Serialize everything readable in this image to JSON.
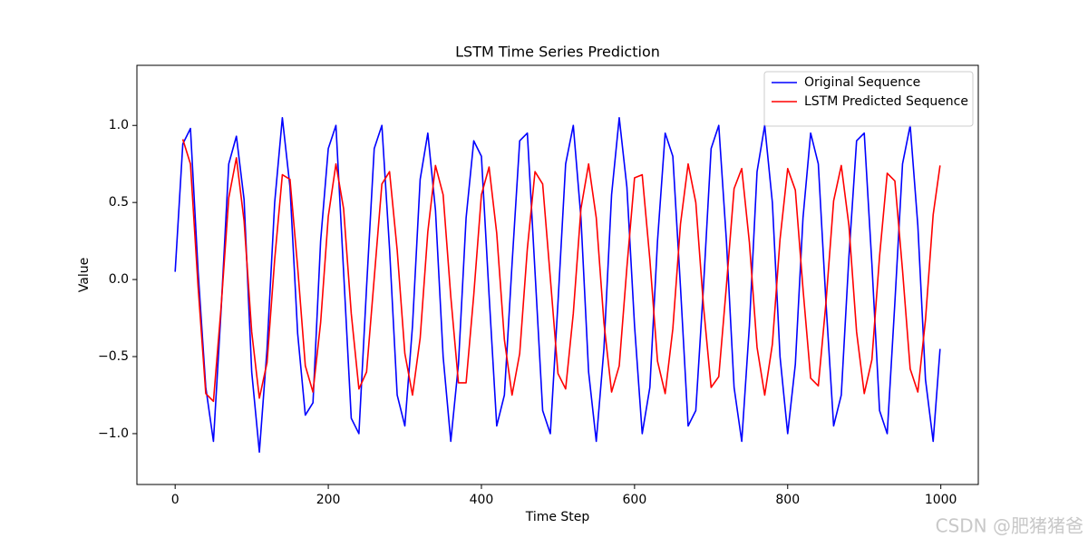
{
  "chart_data": {
    "type": "line",
    "title": "LSTM Time Series Prediction",
    "x_label": "Time Step",
    "y_label": "Value",
    "x": [
      0,
      10,
      20,
      30,
      40,
      50,
      60,
      70,
      80,
      90,
      100,
      110,
      120,
      130,
      140,
      150,
      160,
      170,
      180,
      190,
      200,
      210,
      220,
      230,
      240,
      250,
      260,
      270,
      280,
      290,
      300,
      310,
      320,
      330,
      340,
      350,
      360,
      370,
      380,
      390,
      400,
      410,
      420,
      430,
      440,
      450,
      460,
      470,
      480,
      490,
      500,
      510,
      520,
      530,
      540,
      550,
      560,
      570,
      580,
      590,
      600,
      610,
      620,
      630,
      640,
      650,
      660,
      670,
      680,
      690,
      700,
      710,
      720,
      730,
      740,
      750,
      760,
      770,
      780,
      790,
      800,
      810,
      820,
      830,
      840,
      850,
      860,
      870,
      880,
      890,
      900,
      910,
      920,
      930,
      940,
      950,
      960,
      970,
      980,
      990,
      999
    ],
    "series": [
      {
        "name": "Original Sequence",
        "color": "#0000ff",
        "values": [
          0.05,
          0.88,
          0.98,
          0.05,
          -0.7,
          -1.05,
          -0.2,
          0.75,
          0.93,
          0.52,
          -0.6,
          -1.12,
          -0.45,
          0.5,
          1.05,
          0.6,
          -0.35,
          -0.88,
          -0.8,
          0.25,
          0.85,
          1.0,
          0.05,
          -0.9,
          -1.0,
          -0.05,
          0.85,
          1.0,
          0.2,
          -0.75,
          -0.95,
          -0.3,
          0.65,
          0.95,
          0.45,
          -0.5,
          -1.05,
          -0.55,
          0.4,
          0.9,
          0.8,
          -0.1,
          -0.95,
          -0.75,
          0.1,
          0.9,
          0.95,
          0.05,
          -0.85,
          -1.0,
          -0.15,
          0.75,
          1.0,
          0.4,
          -0.6,
          -1.05,
          -0.45,
          0.55,
          1.05,
          0.6,
          -0.3,
          -1.0,
          -0.7,
          0.25,
          0.95,
          0.8,
          -0.05,
          -0.95,
          -0.85,
          -0.05,
          0.85,
          1.0,
          0.25,
          -0.7,
          -1.05,
          -0.3,
          0.7,
          1.0,
          0.5,
          -0.5,
          -1.0,
          -0.55,
          0.4,
          0.95,
          0.75,
          -0.15,
          -0.95,
          -0.75,
          0.15,
          0.9,
          0.95,
          0.1,
          -0.85,
          -1.0,
          -0.15,
          0.75,
          1.0,
          0.35,
          -0.65,
          -1.05,
          -0.45
        ]
      },
      {
        "name": "LSTM Predicted Sequence",
        "color": "#ff0000",
        "values": [
          null,
          0.91,
          0.75,
          -0.05,
          -0.74,
          -0.79,
          -0.18,
          0.53,
          0.79,
          0.38,
          -0.34,
          -0.77,
          -0.54,
          0.13,
          0.68,
          0.65,
          0.08,
          -0.56,
          -0.73,
          -0.28,
          0.41,
          0.75,
          0.46,
          -0.22,
          -0.71,
          -0.6,
          0.01,
          0.62,
          0.7,
          0.19,
          -0.48,
          -0.75,
          -0.38,
          0.31,
          0.74,
          0.55,
          -0.11,
          -0.67,
          -0.67,
          -0.1,
          0.55,
          0.73,
          0.3,
          -0.39,
          -0.75,
          -0.48,
          0.2,
          0.7,
          0.62,
          0.01,
          -0.61,
          -0.71,
          -0.22,
          0.46,
          0.75,
          0.4,
          -0.28,
          -0.73,
          -0.56,
          0.08,
          0.66,
          0.68,
          0.13,
          -0.53,
          -0.74,
          -0.32,
          0.36,
          0.75,
          0.5,
          -0.17,
          -0.7,
          -0.63,
          -0.04,
          0.59,
          0.72,
          0.24,
          -0.44,
          -0.75,
          -0.42,
          0.26,
          0.72,
          0.58,
          -0.06,
          -0.64,
          -0.69,
          -0.15,
          0.51,
          0.74,
          0.35,
          -0.34,
          -0.74,
          -0.52,
          0.15,
          0.69,
          0.64,
          0.06,
          -0.58,
          -0.73,
          -0.26,
          0.42,
          0.74
        ]
      }
    ],
    "xlim": [
      -49.95,
      1048.95
    ],
    "xticks": [
      0,
      200,
      400,
      600,
      800,
      1000
    ],
    "ylim": [
      -1.33,
      1.39
    ],
    "yticks": [
      {
        "value": -1,
        "label": "−1.0"
      },
      {
        "value": -0.5,
        "label": "−0.5"
      },
      {
        "value": 0,
        "label": "0.0"
      },
      {
        "value": 0.5,
        "label": "0.5"
      },
      {
        "value": 1,
        "label": "1.0"
      }
    ],
    "legend": "upper right",
    "grid": false
  },
  "watermark": "CSDN @肥猪猪爸"
}
